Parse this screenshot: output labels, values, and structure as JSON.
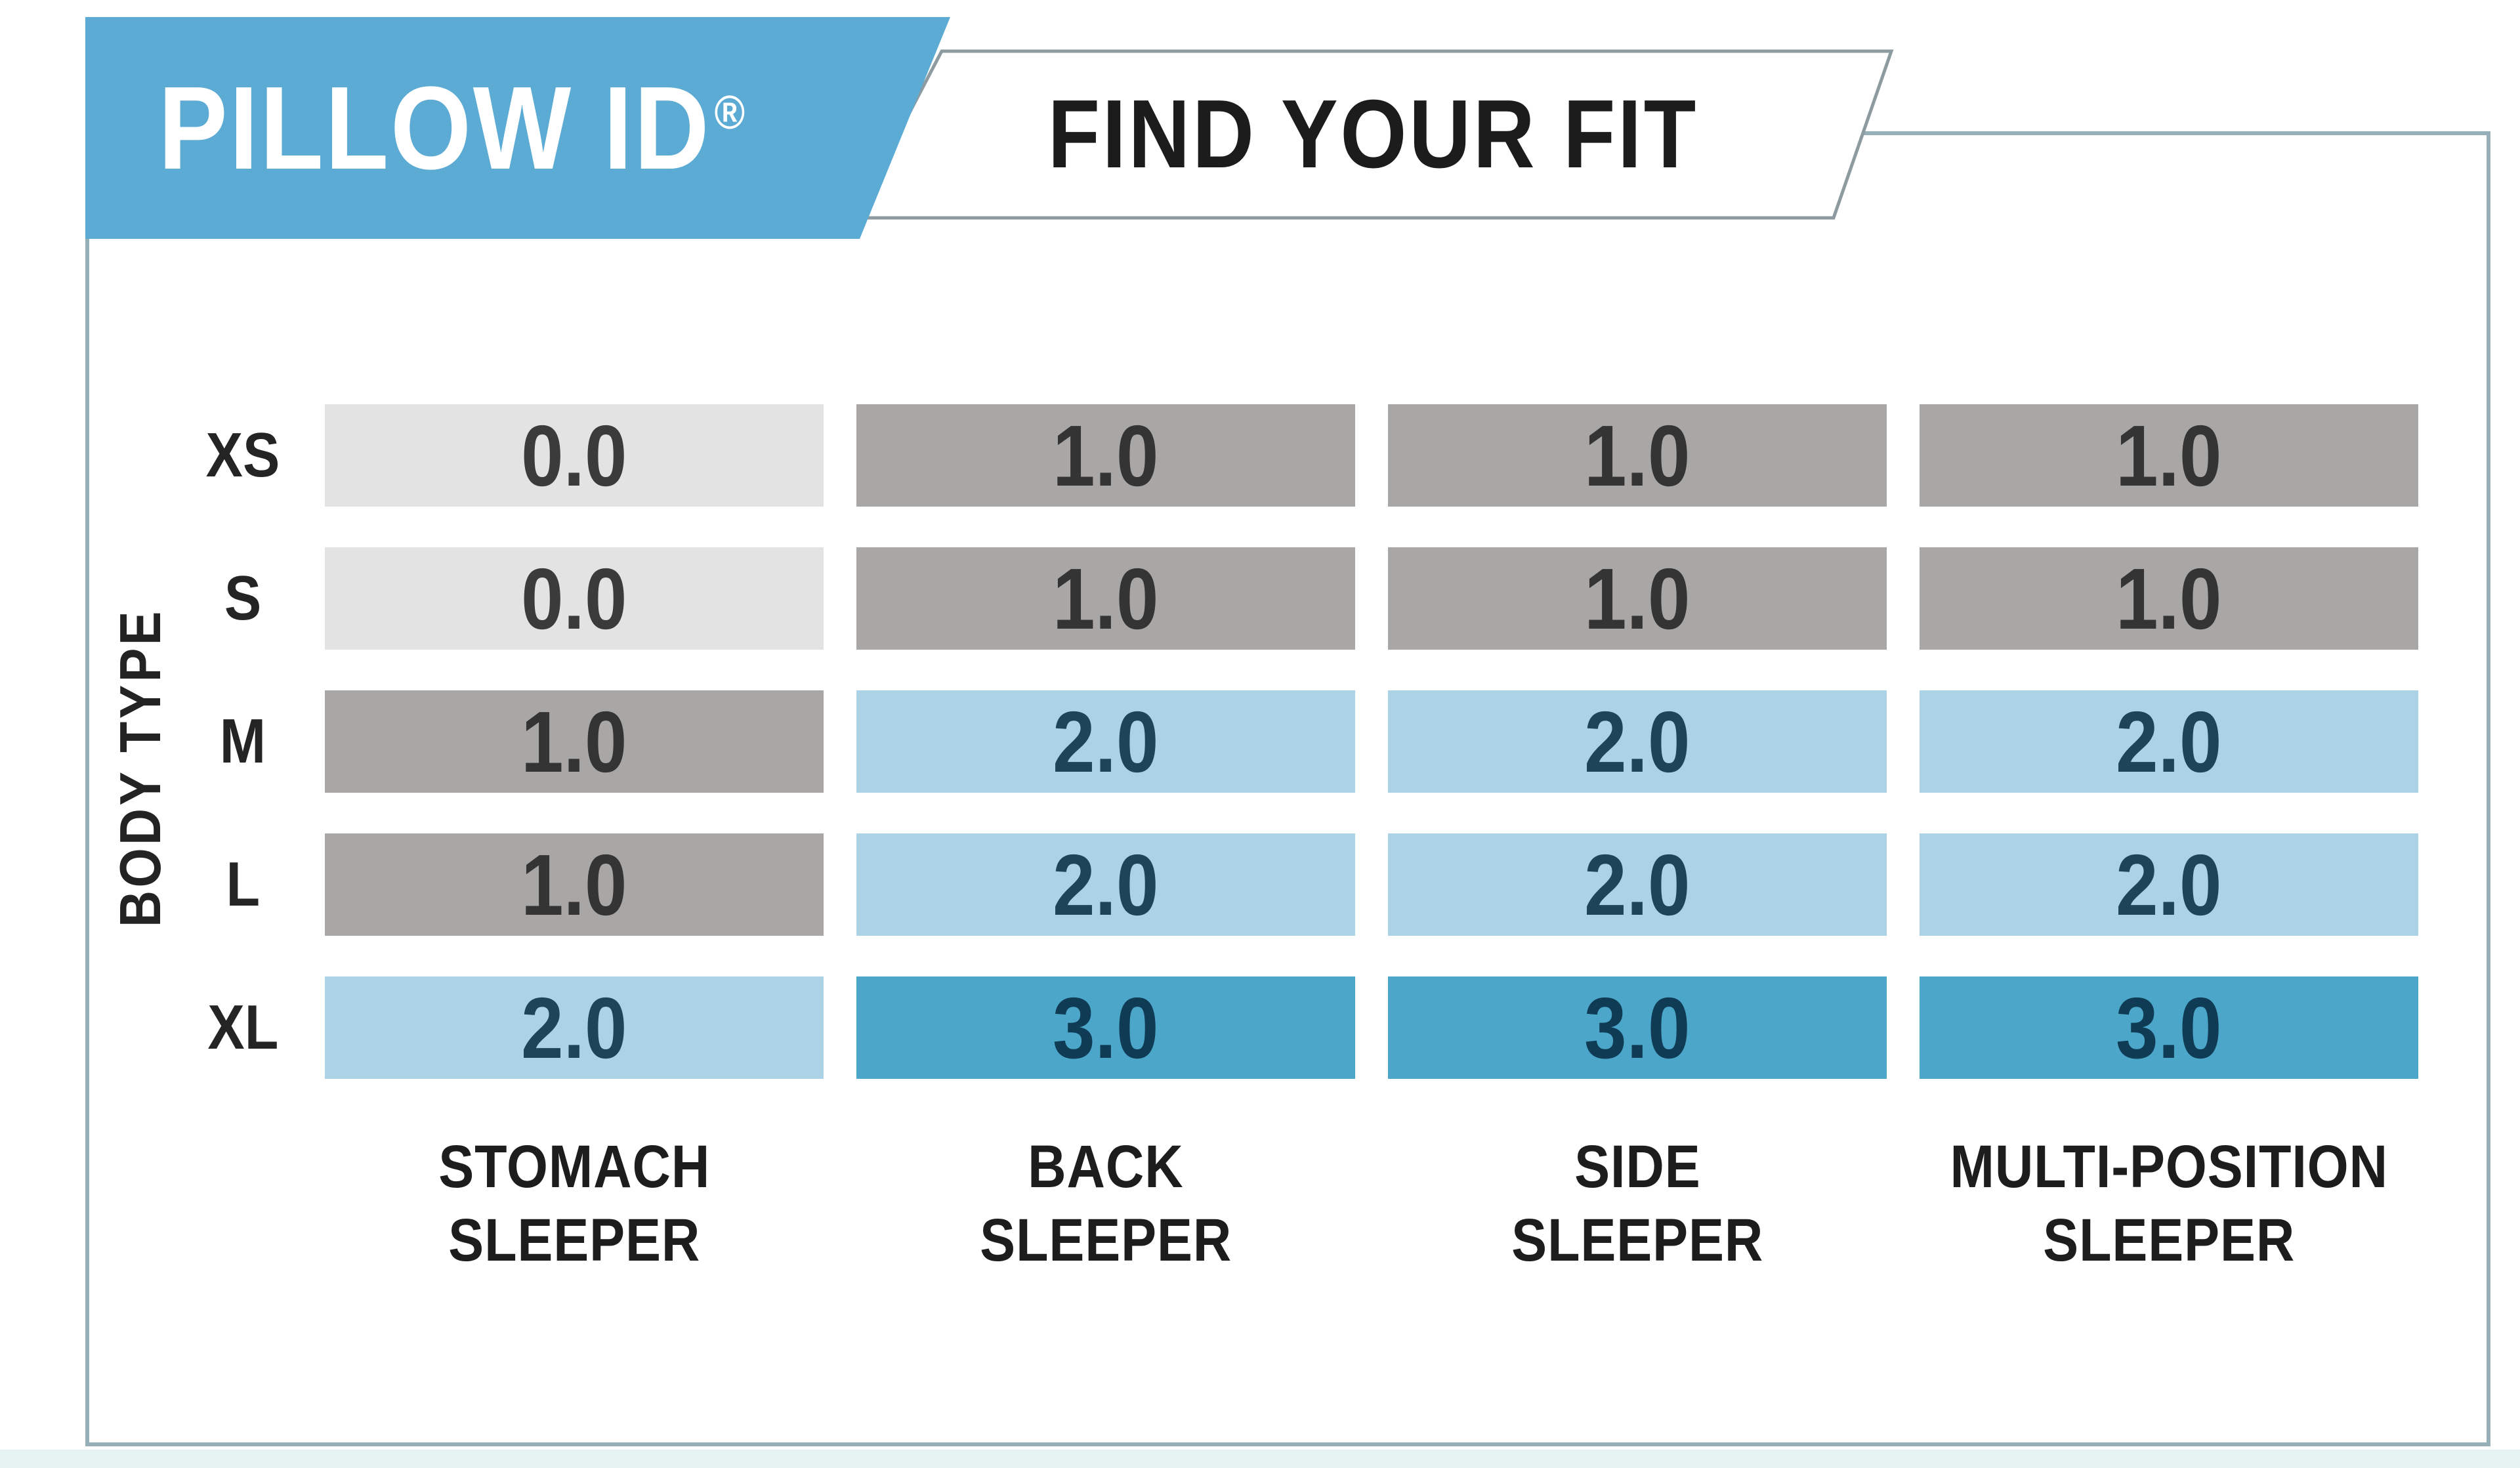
{
  "header": {
    "brand": "PILLOW ID",
    "registered": "®",
    "title": "FIND YOUR FIT"
  },
  "table": {
    "y_axis_label": "BODY TYPE",
    "row_labels": [
      "XS",
      "S",
      "M",
      "L",
      "XL"
    ],
    "column_labels": [
      [
        "STOMACH",
        "SLEEPER"
      ],
      [
        "BACK",
        "SLEEPER"
      ],
      [
        "SIDE",
        "SLEEPER"
      ],
      [
        "MULTI-POSITION",
        "SLEEPER"
      ]
    ]
  },
  "chart_data": {
    "type": "heatmap",
    "title": "PILLOW ID® — FIND YOUR FIT",
    "rows": [
      "XS",
      "S",
      "M",
      "L",
      "XL"
    ],
    "columns": [
      "STOMACH SLEEPER",
      "BACK SLEEPER",
      "SIDE SLEEPER",
      "MULTI-POSITION SLEEPER"
    ],
    "ylabel": "BODY TYPE",
    "values": [
      [
        0.0,
        1.0,
        1.0,
        1.0
      ],
      [
        0.0,
        1.0,
        1.0,
        1.0
      ],
      [
        1.0,
        2.0,
        2.0,
        2.0
      ],
      [
        1.0,
        2.0,
        2.0,
        2.0
      ],
      [
        2.0,
        3.0,
        3.0,
        3.0
      ]
    ],
    "value_format": "one_decimal",
    "value_range": [
      0.0,
      3.0
    ],
    "legend_position": "none",
    "grid": false
  },
  "colors": {
    "header_blue": "#5cabd4",
    "brand_text": "#ffffff",
    "title_text": "#1c1c1c",
    "banner_fill": "#ffffff",
    "banner_border": "#8d9ba1",
    "frame_border": "#97b0b7",
    "bottom_strip": "#e7f2f3",
    "value_scale": {
      "0": {
        "bg": "#e3e3e3",
        "text": "#3b3b3b"
      },
      "1": {
        "bg": "#a8a7a5",
        "text": "#343434"
      },
      "2": {
        "bg": "#abd2e5",
        "text": "#1d4459"
      },
      "3": {
        "bg": "#4ba6c9",
        "text": "#0f3c54"
      }
    }
  }
}
